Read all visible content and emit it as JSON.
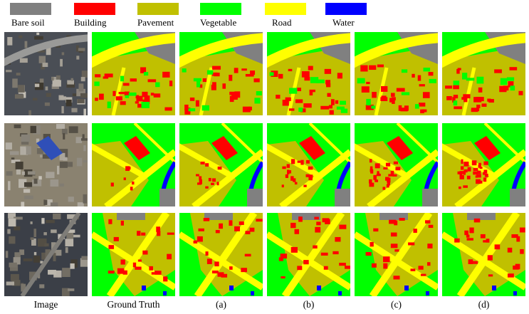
{
  "legend": [
    {
      "label": "Bare soil",
      "color": "#808080"
    },
    {
      "label": "Building",
      "color": "#ff0000"
    },
    {
      "label": "Pavement",
      "color": "#c0c000"
    },
    {
      "label": "Vegetable",
      "color": "#00ff00"
    },
    {
      "label": "Road",
      "color": "#ffff00"
    },
    {
      "label": "Water",
      "color": "#0000ff"
    }
  ],
  "columns": [
    "Image",
    "Ground Truth",
    "(a)",
    "(b)",
    "(c)",
    "(d)"
  ],
  "rows": 3
}
